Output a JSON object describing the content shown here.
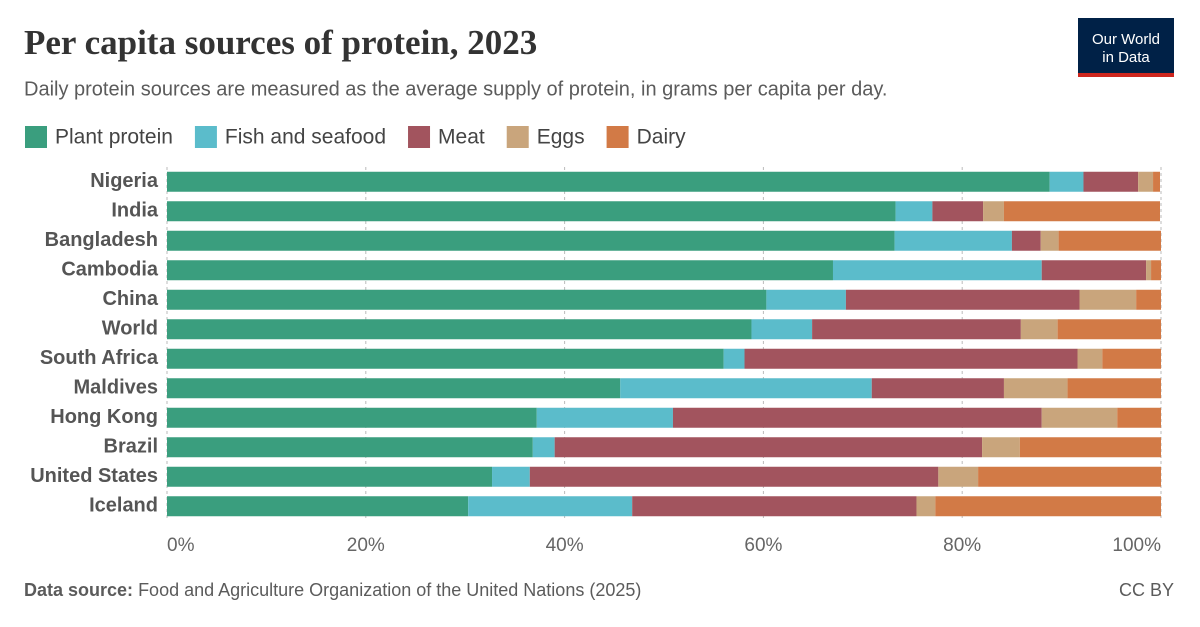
{
  "chart_data": {
    "type": "bar",
    "orientation": "horizontal",
    "stacked": true,
    "title": "Per capita sources of protein, 2023",
    "subtitle": "Daily protein sources are measured as the average supply of protein, in grams per capita per day.",
    "categories": [
      "Nigeria",
      "India",
      "Bangladesh",
      "Cambodia",
      "China",
      "World",
      "South Africa",
      "Maldives",
      "Hong Kong",
      "Brazil",
      "United States",
      "Iceland"
    ],
    "series": [
      {
        "name": "Plant protein",
        "color": "#3a9e7e",
        "values": [
          88.8,
          73.3,
          73.2,
          67.0,
          60.3,
          58.8,
          56.0,
          45.6,
          37.2,
          36.8,
          32.7,
          30.3
        ]
      },
      {
        "name": "Fish and seafood",
        "color": "#5bbccb",
        "values": [
          3.4,
          3.7,
          11.8,
          21.0,
          8.0,
          6.1,
          2.1,
          25.3,
          13.7,
          2.2,
          3.8,
          16.5
        ]
      },
      {
        "name": "Meat",
        "color": "#a2545e",
        "values": [
          5.5,
          5.1,
          2.9,
          10.5,
          23.5,
          21.0,
          33.5,
          13.3,
          37.1,
          43.0,
          41.1,
          28.6
        ]
      },
      {
        "name": "Eggs",
        "color": "#c9a57c",
        "values": [
          1.5,
          2.1,
          1.8,
          0.5,
          5.7,
          3.7,
          2.5,
          6.4,
          7.6,
          3.8,
          4.0,
          1.9
        ]
      },
      {
        "name": "Dairy",
        "color": "#d27a46",
        "values": [
          0.7,
          15.7,
          10.3,
          1.0,
          2.5,
          10.4,
          5.9,
          9.4,
          4.4,
          14.2,
          18.4,
          22.7
        ]
      }
    ],
    "xlim": [
      0,
      100
    ],
    "xticks": [
      {
        "value": 0,
        "label": "0%"
      },
      {
        "value": 20,
        "label": "20%"
      },
      {
        "value": 40,
        "label": "40%"
      },
      {
        "value": 60,
        "label": "60%"
      },
      {
        "value": 80,
        "label": "80%"
      },
      {
        "value": 100,
        "label": "100%"
      }
    ],
    "grid": true,
    "legend": "top"
  },
  "footer": {
    "source_label": "Data source:",
    "source": "Food and Agriculture Organization of the United Nations (2025)",
    "license": "CC BY"
  },
  "logo": {
    "lines": [
      "Our World",
      "in Data"
    ]
  }
}
